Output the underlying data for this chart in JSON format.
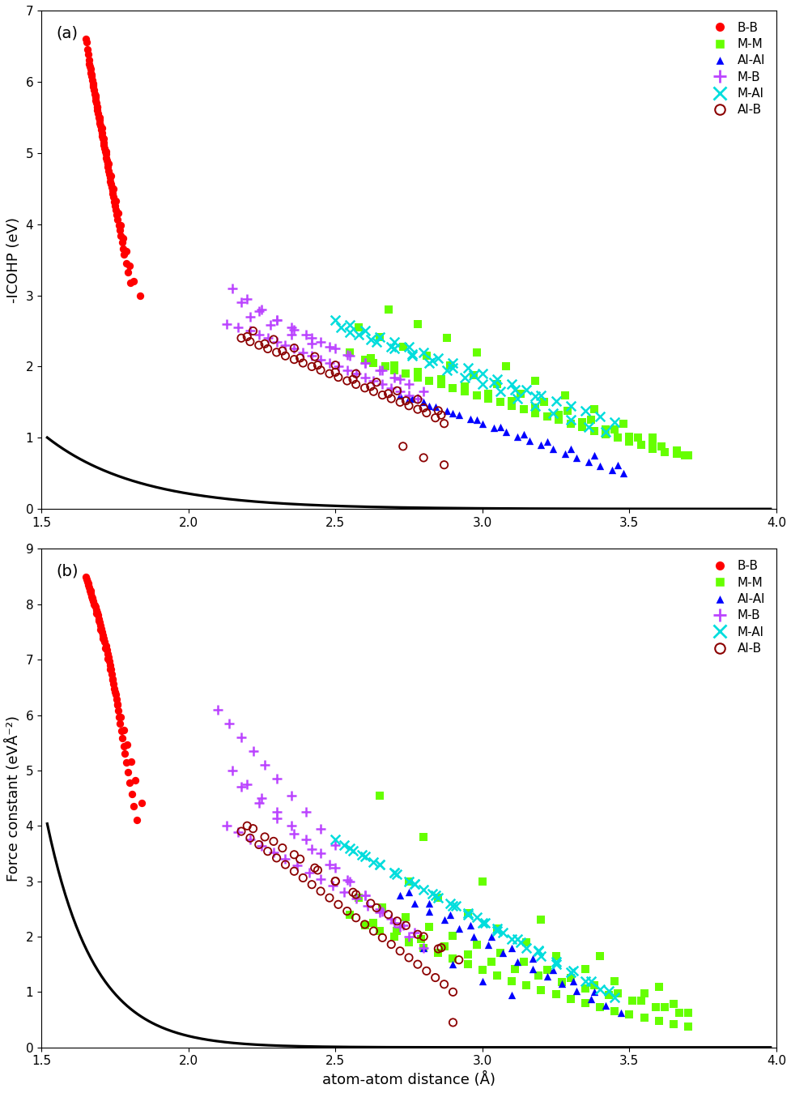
{
  "panel_a": {
    "title": "(a)",
    "ylabel": "-ICOHP (eV)",
    "ylim": [
      0,
      7
    ],
    "yticks": [
      0,
      1,
      2,
      3,
      4,
      5,
      6,
      7
    ],
    "BB": {
      "x": [
        1.65,
        1.655,
        1.658,
        1.66,
        1.662,
        1.665,
        1.667,
        1.669,
        1.671,
        1.673,
        1.675,
        1.677,
        1.679,
        1.681,
        1.683,
        1.685,
        1.687,
        1.689,
        1.691,
        1.693,
        1.695,
        1.697,
        1.699,
        1.701,
        1.703,
        1.705,
        1.707,
        1.709,
        1.711,
        1.713,
        1.715,
        1.717,
        1.719,
        1.721,
        1.723,
        1.725,
        1.727,
        1.729,
        1.731,
        1.733,
        1.735,
        1.737,
        1.739,
        1.741,
        1.743,
        1.745,
        1.748,
        1.751,
        1.754,
        1.757,
        1.76,
        1.763,
        1.766,
        1.77,
        1.774,
        1.778,
        1.782,
        1.788,
        1.795,
        1.803,
        1.663,
        1.67,
        1.677,
        1.684,
        1.691,
        1.698,
        1.705,
        1.712,
        1.72,
        1.728,
        1.736,
        1.744,
        1.752,
        1.761,
        1.77,
        1.779,
        1.788,
        1.8,
        1.815,
        1.835
      ],
      "y": [
        6.6,
        6.55,
        6.45,
        6.38,
        6.3,
        6.22,
        6.18,
        6.12,
        6.08,
        6.02,
        5.98,
        5.93,
        5.88,
        5.83,
        5.78,
        5.74,
        5.7,
        5.65,
        5.6,
        5.55,
        5.5,
        5.46,
        5.42,
        5.38,
        5.33,
        5.28,
        5.24,
        5.2,
        5.15,
        5.11,
        5.07,
        5.02,
        4.98,
        4.93,
        4.89,
        4.85,
        4.8,
        4.75,
        4.7,
        4.65,
        4.6,
        4.56,
        4.52,
        4.47,
        4.43,
        4.38,
        4.32,
        4.26,
        4.2,
        4.13,
        4.06,
        3.99,
        3.92,
        3.84,
        3.75,
        3.66,
        3.57,
        3.45,
        3.32,
        3.18,
        6.25,
        6.1,
        5.95,
        5.8,
        5.65,
        5.5,
        5.35,
        5.2,
        5.02,
        4.85,
        4.68,
        4.5,
        4.33,
        4.15,
        3.98,
        3.8,
        3.62,
        3.42,
        3.2,
        3.0
      ]
    },
    "MM": {
      "x": [
        2.6,
        2.63,
        2.67,
        2.7,
        2.74,
        2.78,
        2.82,
        2.86,
        2.9,
        2.94,
        2.98,
        3.02,
        3.06,
        3.1,
        3.14,
        3.18,
        3.22,
        3.26,
        3.3,
        3.34,
        3.38,
        3.42,
        3.46,
        3.5,
        3.54,
        3.58,
        3.62,
        3.66,
        3.7,
        2.55,
        2.62,
        2.7,
        2.78,
        2.86,
        2.94,
        3.02,
        3.1,
        3.18,
        3.26,
        3.34,
        3.42,
        3.5,
        3.58,
        3.66,
        2.58,
        2.65,
        2.73,
        2.81,
        2.89,
        2.97,
        3.05,
        3.13,
        3.21,
        3.29,
        3.37,
        3.45,
        3.53,
        3.61,
        3.69,
        2.68,
        2.78,
        2.88,
        2.98,
        3.08,
        3.18,
        3.28,
        3.38,
        3.48,
        3.58
      ],
      "y": [
        2.1,
        2.05,
        2.0,
        1.95,
        1.9,
        1.85,
        1.8,
        1.75,
        1.7,
        1.65,
        1.6,
        1.55,
        1.5,
        1.45,
        1.4,
        1.35,
        1.3,
        1.25,
        1.2,
        1.15,
        1.1,
        1.05,
        1.0,
        0.95,
        0.9,
        0.85,
        0.8,
        0.78,
        0.75,
        2.2,
        2.12,
        2.02,
        1.92,
        1.82,
        1.72,
        1.62,
        1.52,
        1.42,
        1.32,
        1.22,
        1.12,
        1.02,
        0.92,
        0.82,
        2.55,
        2.42,
        2.28,
        2.15,
        2.02,
        1.88,
        1.75,
        1.62,
        1.5,
        1.38,
        1.25,
        1.12,
        1.0,
        0.88,
        0.75,
        2.8,
        2.6,
        2.4,
        2.2,
        2.0,
        1.8,
        1.6,
        1.4,
        1.2,
        1.0
      ]
    },
    "AlAl": {
      "x": [
        2.72,
        2.76,
        2.8,
        2.84,
        2.88,
        2.92,
        2.96,
        3.0,
        3.04,
        3.08,
        3.12,
        3.16,
        3.2,
        3.24,
        3.28,
        3.32,
        3.36,
        3.4,
        3.44,
        3.48,
        2.75,
        2.82,
        2.9,
        2.98,
        3.06,
        3.14,
        3.22,
        3.3,
        3.38,
        3.46
      ],
      "y": [
        1.6,
        1.55,
        1.5,
        1.44,
        1.38,
        1.32,
        1.26,
        1.2,
        1.14,
        1.08,
        1.02,
        0.96,
        0.9,
        0.84,
        0.78,
        0.72,
        0.66,
        0.6,
        0.55,
        0.5,
        1.55,
        1.45,
        1.35,
        1.25,
        1.15,
        1.05,
        0.95,
        0.85,
        0.75,
        0.62
      ]
    },
    "MB": {
      "x": [
        2.13,
        2.17,
        2.21,
        2.24,
        2.27,
        2.3,
        2.33,
        2.36,
        2.39,
        2.42,
        2.45,
        2.48,
        2.51,
        2.54,
        2.57,
        2.6,
        2.63,
        2.66,
        2.69,
        2.72,
        2.75,
        2.78,
        2.15,
        2.2,
        2.25,
        2.3,
        2.35,
        2.4,
        2.45,
        2.5,
        2.55,
        2.6,
        2.65,
        2.7,
        2.75,
        2.8,
        2.18,
        2.24,
        2.3,
        2.36,
        2.42,
        2.48,
        2.54,
        2.6,
        2.66,
        2.72,
        2.21,
        2.28,
        2.35,
        2.42
      ],
      "y": [
        2.6,
        2.55,
        2.5,
        2.45,
        2.4,
        2.35,
        2.3,
        2.25,
        2.2,
        2.15,
        2.1,
        2.05,
        2.0,
        1.95,
        1.9,
        1.85,
        1.8,
        1.75,
        1.7,
        1.65,
        1.6,
        1.55,
        3.1,
        2.95,
        2.8,
        2.65,
        2.55,
        2.45,
        2.35,
        2.25,
        2.15,
        2.05,
        1.95,
        1.85,
        1.75,
        1.65,
        2.9,
        2.78,
        2.65,
        2.52,
        2.4,
        2.28,
        2.16,
        2.05,
        1.95,
        1.82,
        2.7,
        2.58,
        2.45,
        2.32
      ]
    },
    "MAl": {
      "x": [
        2.5,
        2.55,
        2.6,
        2.65,
        2.7,
        2.75,
        2.8,
        2.85,
        2.9,
        2.95,
        3.0,
        3.05,
        3.1,
        3.15,
        3.2,
        3.25,
        3.3,
        3.35,
        3.4,
        3.45,
        2.52,
        2.58,
        2.64,
        2.7,
        2.76,
        2.82,
        2.88,
        2.94,
        3.0,
        3.06,
        3.12,
        3.18,
        3.24,
        3.3,
        3.36,
        3.42,
        2.55,
        2.62,
        2.69,
        2.76,
        2.83,
        2.9,
        2.97,
        3.04,
        3.11,
        3.18
      ],
      "y": [
        2.65,
        2.58,
        2.5,
        2.42,
        2.35,
        2.28,
        2.2,
        2.12,
        2.05,
        1.98,
        1.9,
        1.82,
        1.75,
        1.68,
        1.6,
        1.52,
        1.45,
        1.38,
        1.3,
        1.22,
        2.55,
        2.45,
        2.35,
        2.25,
        2.15,
        2.05,
        1.95,
        1.85,
        1.75,
        1.65,
        1.55,
        1.45,
        1.35,
        1.25,
        1.15,
        1.08,
        2.48,
        2.38,
        2.28,
        2.18,
        2.08,
        1.98,
        1.88,
        1.78,
        1.68,
        1.58
      ]
    },
    "AlB": {
      "x": [
        2.18,
        2.21,
        2.24,
        2.27,
        2.3,
        2.33,
        2.36,
        2.39,
        2.42,
        2.45,
        2.48,
        2.51,
        2.54,
        2.57,
        2.6,
        2.63,
        2.66,
        2.69,
        2.72,
        2.75,
        2.78,
        2.81,
        2.84,
        2.87,
        2.2,
        2.26,
        2.32,
        2.38,
        2.44,
        2.5,
        2.56,
        2.62,
        2.68,
        2.74,
        2.8,
        2.86,
        2.22,
        2.29,
        2.36,
        2.43,
        2.5,
        2.57,
        2.64,
        2.71,
        2.78,
        2.85,
        2.73,
        2.8,
        2.87
      ],
      "y": [
        2.4,
        2.35,
        2.3,
        2.25,
        2.2,
        2.15,
        2.1,
        2.05,
        2.0,
        1.95,
        1.9,
        1.85,
        1.8,
        1.75,
        1.7,
        1.65,
        1.6,
        1.55,
        1.5,
        1.45,
        1.4,
        1.35,
        1.28,
        1.2,
        2.42,
        2.32,
        2.22,
        2.12,
        2.02,
        1.92,
        1.82,
        1.72,
        1.62,
        1.52,
        1.42,
        1.32,
        2.5,
        2.38,
        2.26,
        2.14,
        2.02,
        1.9,
        1.78,
        1.66,
        1.54,
        1.38,
        0.88,
        0.72,
        0.62
      ]
    }
  },
  "panel_b": {
    "title": "(b)",
    "ylabel": "Force constant (eVÅ⁻²)",
    "ylim": [
      0,
      9
    ],
    "yticks": [
      0,
      1,
      2,
      3,
      4,
      5,
      6,
      7,
      8,
      9
    ],
    "BB": {
      "x": [
        1.65,
        1.653,
        1.656,
        1.659,
        1.662,
        1.665,
        1.668,
        1.671,
        1.674,
        1.677,
        1.68,
        1.683,
        1.686,
        1.689,
        1.692,
        1.695,
        1.698,
        1.701,
        1.704,
        1.707,
        1.71,
        1.713,
        1.716,
        1.719,
        1.722,
        1.725,
        1.728,
        1.731,
        1.734,
        1.737,
        1.74,
        1.743,
        1.746,
        1.749,
        1.752,
        1.755,
        1.758,
        1.761,
        1.764,
        1.768,
        1.772,
        1.776,
        1.78,
        1.784,
        1.789,
        1.794,
        1.8,
        1.807,
        1.815,
        1.825,
        1.66,
        1.667,
        1.674,
        1.681,
        1.688,
        1.695,
        1.702,
        1.71,
        1.718,
        1.726,
        1.734,
        1.742,
        1.751,
        1.76,
        1.77,
        1.78,
        1.792,
        1.805,
        1.82,
        1.84
      ],
      "y": [
        8.5,
        8.45,
        8.4,
        8.35,
        8.3,
        8.25,
        8.2,
        8.15,
        8.1,
        8.05,
        8.0,
        7.95,
        7.9,
        7.85,
        7.8,
        7.74,
        7.68,
        7.62,
        7.56,
        7.5,
        7.44,
        7.38,
        7.32,
        7.25,
        7.18,
        7.11,
        7.04,
        6.97,
        6.9,
        6.82,
        6.74,
        6.65,
        6.56,
        6.47,
        6.38,
        6.28,
        6.18,
        6.08,
        5.97,
        5.85,
        5.72,
        5.58,
        5.44,
        5.3,
        5.14,
        4.97,
        4.78,
        4.58,
        4.35,
        4.1,
        8.38,
        8.25,
        8.12,
        7.98,
        7.84,
        7.7,
        7.55,
        7.38,
        7.2,
        7.02,
        6.83,
        6.63,
        6.42,
        6.2,
        5.97,
        5.73,
        5.46,
        5.16,
        4.82,
        4.42
      ]
    },
    "MM": {
      "x": [
        2.6,
        2.65,
        2.7,
        2.75,
        2.8,
        2.85,
        2.9,
        2.95,
        3.0,
        3.05,
        3.1,
        3.15,
        3.2,
        3.25,
        3.3,
        3.35,
        3.4,
        3.45,
        3.5,
        3.55,
        3.6,
        3.65,
        3.7,
        2.55,
        2.63,
        2.71,
        2.79,
        2.87,
        2.95,
        3.03,
        3.11,
        3.19,
        3.27,
        3.35,
        3.43,
        3.51,
        3.59,
        3.67,
        2.58,
        2.66,
        2.74,
        2.82,
        2.9,
        2.98,
        3.06,
        3.14,
        3.22,
        3.3,
        3.38,
        3.46,
        3.54,
        3.62,
        3.7,
        2.75,
        2.85,
        2.95,
        3.05,
        3.15,
        3.25,
        3.35,
        3.45,
        3.55,
        3.65,
        2.65,
        2.8,
        3.0,
        3.2,
        3.4,
        3.6
      ],
      "y": [
        2.2,
        2.1,
        2.0,
        1.9,
        1.8,
        1.7,
        1.6,
        1.5,
        1.4,
        1.3,
        1.2,
        1.12,
        1.04,
        0.96,
        0.88,
        0.8,
        0.73,
        0.66,
        0.6,
        0.54,
        0.48,
        0.42,
        0.38,
        2.4,
        2.25,
        2.1,
        1.95,
        1.82,
        1.68,
        1.55,
        1.42,
        1.3,
        1.18,
        1.06,
        0.95,
        0.84,
        0.73,
        0.63,
        2.7,
        2.52,
        2.35,
        2.18,
        2.02,
        1.86,
        1.7,
        1.55,
        1.4,
        1.26,
        1.12,
        0.98,
        0.85,
        0.73,
        0.62,
        3.0,
        2.7,
        2.42,
        2.15,
        1.9,
        1.65,
        1.42,
        1.2,
        0.98,
        0.78,
        4.55,
        3.8,
        3.0,
        2.3,
        1.65,
        1.1
      ]
    },
    "AlAl": {
      "x": [
        2.72,
        2.77,
        2.82,
        2.87,
        2.92,
        2.97,
        3.02,
        3.07,
        3.12,
        3.17,
        3.22,
        3.27,
        3.32,
        3.37,
        3.42,
        3.47,
        2.75,
        2.82,
        2.89,
        2.96,
        3.03,
        3.1,
        3.17,
        3.24,
        3.31,
        3.38,
        2.8,
        2.9,
        3.0,
        3.1
      ],
      "y": [
        2.75,
        2.6,
        2.45,
        2.3,
        2.15,
        2.0,
        1.85,
        1.7,
        1.55,
        1.42,
        1.28,
        1.15,
        1.02,
        0.88,
        0.75,
        0.62,
        2.8,
        2.6,
        2.4,
        2.2,
        2.0,
        1.8,
        1.6,
        1.4,
        1.2,
        1.0,
        1.8,
        1.5,
        1.2,
        0.95
      ]
    },
    "MB": {
      "x": [
        2.13,
        2.17,
        2.21,
        2.25,
        2.29,
        2.33,
        2.37,
        2.41,
        2.45,
        2.49,
        2.53,
        2.57,
        2.61,
        2.65,
        2.69,
        2.73,
        2.77,
        2.15,
        2.2,
        2.25,
        2.3,
        2.35,
        2.4,
        2.45,
        2.5,
        2.55,
        2.6,
        2.65,
        2.7,
        2.75,
        2.8,
        2.18,
        2.24,
        2.3,
        2.36,
        2.42,
        2.48,
        2.54,
        2.6,
        2.66,
        2.72,
        2.1,
        2.14,
        2.18,
        2.22,
        2.26,
        2.3,
        2.35,
        2.4,
        2.45,
        2.5
      ],
      "y": [
        4.0,
        3.88,
        3.76,
        3.64,
        3.52,
        3.4,
        3.28,
        3.16,
        3.04,
        2.92,
        2.8,
        2.68,
        2.56,
        2.44,
        2.32,
        2.2,
        2.08,
        5.0,
        4.75,
        4.5,
        4.25,
        4.0,
        3.75,
        3.5,
        3.25,
        3.0,
        2.75,
        2.5,
        2.25,
        2.0,
        1.8,
        4.7,
        4.42,
        4.14,
        3.86,
        3.58,
        3.3,
        3.02,
        2.74,
        2.46,
        2.18,
        6.1,
        5.85,
        5.6,
        5.35,
        5.1,
        4.85,
        4.55,
        4.25,
        3.95,
        3.65
      ]
    },
    "MAl": {
      "x": [
        2.5,
        2.55,
        2.6,
        2.65,
        2.7,
        2.75,
        2.8,
        2.85,
        2.9,
        2.95,
        3.0,
        3.05,
        3.1,
        3.15,
        3.2,
        3.25,
        3.3,
        3.35,
        3.4,
        3.45,
        2.53,
        2.59,
        2.65,
        2.71,
        2.77,
        2.83,
        2.89,
        2.95,
        3.01,
        3.07,
        3.13,
        3.19,
        3.25,
        3.31,
        3.37,
        3.43,
        2.56,
        2.63,
        2.7,
        2.77,
        2.84,
        2.91,
        2.98,
        3.05,
        3.12,
        3.19
      ],
      "y": [
        3.75,
        3.6,
        3.45,
        3.3,
        3.15,
        3.0,
        2.85,
        2.7,
        2.55,
        2.4,
        2.25,
        2.1,
        1.95,
        1.8,
        1.65,
        1.5,
        1.35,
        1.2,
        1.05,
        0.9,
        3.65,
        3.48,
        3.3,
        3.12,
        2.95,
        2.78,
        2.6,
        2.42,
        2.25,
        2.08,
        1.9,
        1.73,
        1.55,
        1.38,
        1.2,
        1.02,
        3.55,
        3.35,
        3.15,
        2.95,
        2.75,
        2.55,
        2.35,
        2.15,
        1.95,
        1.75
      ]
    },
    "AlB": {
      "x": [
        2.18,
        2.21,
        2.24,
        2.27,
        2.3,
        2.33,
        2.36,
        2.39,
        2.42,
        2.45,
        2.48,
        2.51,
        2.54,
        2.57,
        2.6,
        2.63,
        2.66,
        2.69,
        2.72,
        2.75,
        2.78,
        2.81,
        2.84,
        2.87,
        2.9,
        2.2,
        2.26,
        2.32,
        2.38,
        2.44,
        2.5,
        2.56,
        2.62,
        2.68,
        2.74,
        2.8,
        2.86,
        2.92,
        2.22,
        2.29,
        2.36,
        2.43,
        2.5,
        2.57,
        2.64,
        2.71,
        2.78,
        2.85,
        2.9
      ],
      "y": [
        3.9,
        3.78,
        3.66,
        3.54,
        3.42,
        3.3,
        3.18,
        3.06,
        2.94,
        2.82,
        2.7,
        2.58,
        2.46,
        2.34,
        2.22,
        2.1,
        1.98,
        1.86,
        1.74,
        1.62,
        1.5,
        1.38,
        1.26,
        1.14,
        1.0,
        4.0,
        3.8,
        3.6,
        3.4,
        3.2,
        3.0,
        2.8,
        2.6,
        2.4,
        2.2,
        2.0,
        1.8,
        1.58,
        3.95,
        3.72,
        3.48,
        3.24,
        3.0,
        2.76,
        2.52,
        2.28,
        2.04,
        1.78,
        0.45
      ]
    }
  },
  "xlabel": "atom-atom distance (Å)",
  "colors": {
    "BB": "#ff0000",
    "MM": "#66ff00",
    "AlAl": "#0000ff",
    "MB": "#bb44ff",
    "MAl": "#00dddd",
    "AlB": "#8b0000"
  },
  "curve_color": "#000000",
  "xlim": [
    1.5,
    4.0
  ],
  "curve_a": {
    "a": 130.0,
    "b": -3.2
  },
  "curve_b": {
    "a": 50000.0,
    "b": -6.2
  }
}
